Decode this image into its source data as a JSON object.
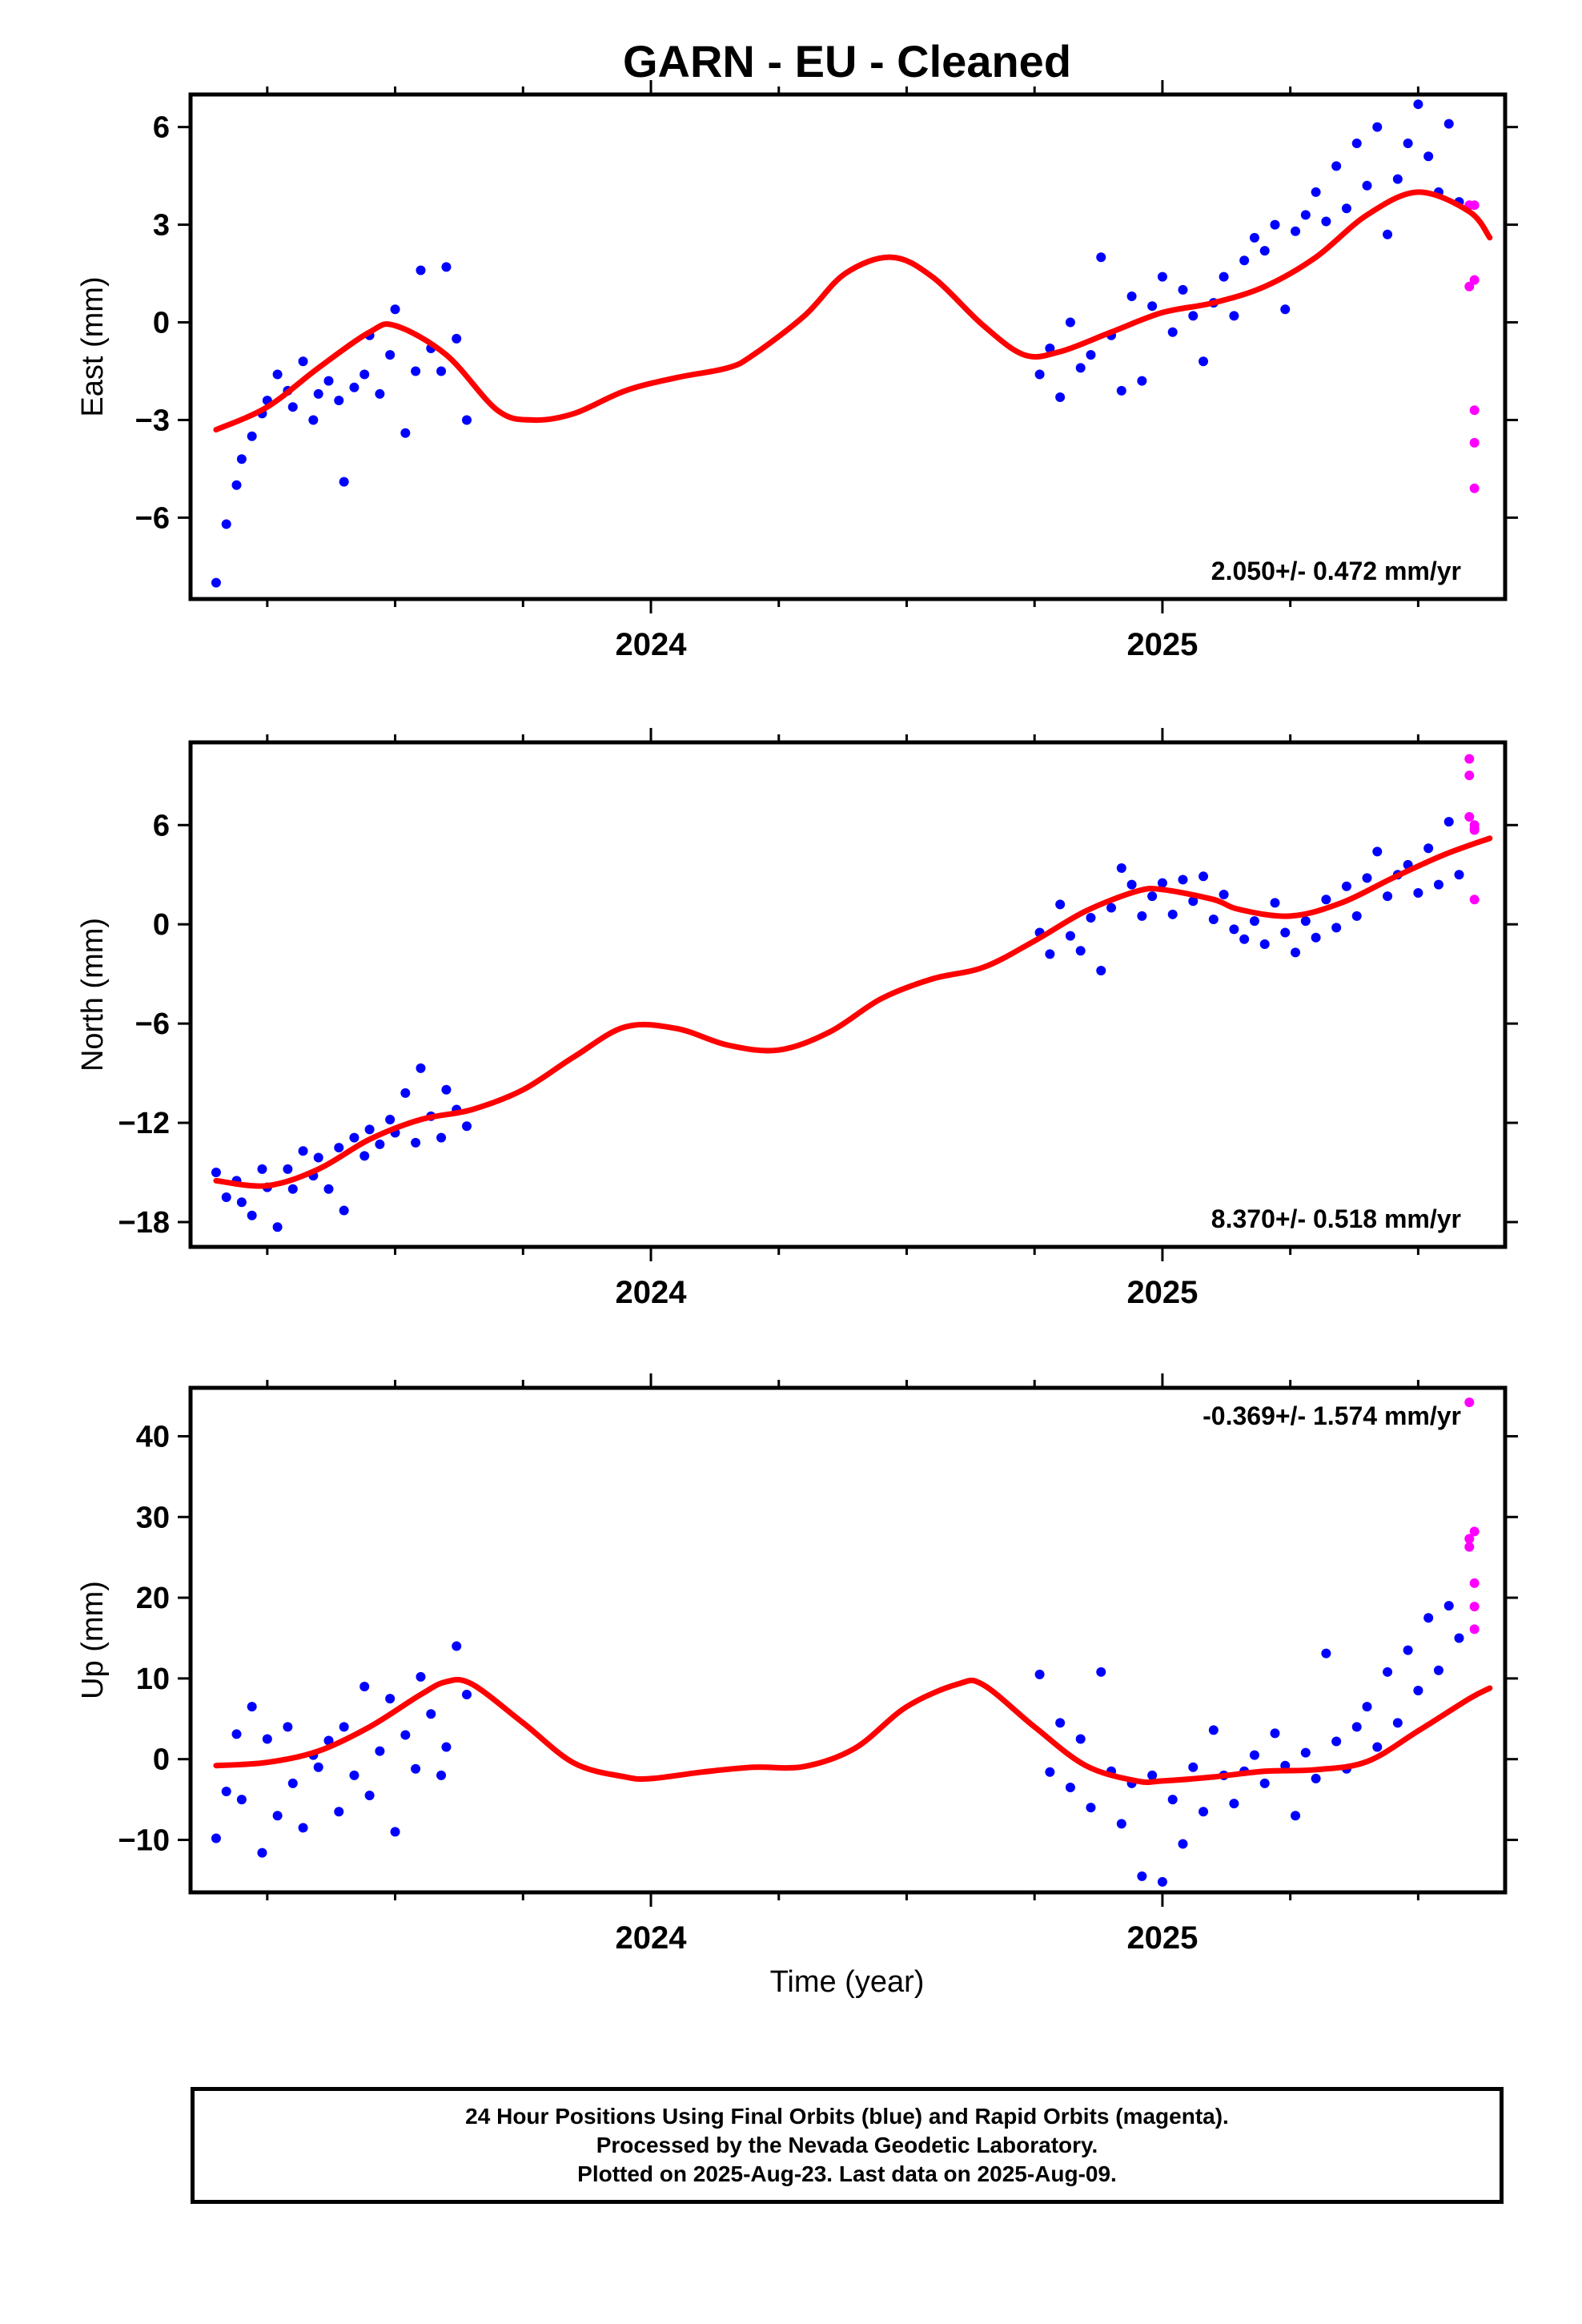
{
  "title": "GARN  - EU - Cleaned",
  "xlabel": "Time (year)",
  "colors": {
    "final_orbits": "#0000ff",
    "rapid_orbits": "#ff00ff",
    "model": "#ff0000",
    "axes": "#000000"
  },
  "footer": {
    "line1": "24 Hour Positions Using Final Orbits (blue) and Rapid Orbits (magenta).",
    "line2": "Processed by the Nevada Geodetic Laboratory.",
    "line3": "Plotted on 2025-Aug-23. Last data on 2025-Aug-09."
  },
  "chart_data": [
    {
      "type": "scatter",
      "component": "East",
      "ylabel": "East (mm)",
      "xlim": [
        2023.1,
        2025.67
      ],
      "ylim": [
        -8.5,
        7.0
      ],
      "yticks": [
        -6,
        -3,
        0,
        3,
        6
      ],
      "xticks": [
        2024,
        2025
      ],
      "rate_label": "2.050+/- 0.472 mm/yr",
      "model_curve": {
        "x": [
          2023.15,
          2023.25,
          2023.35,
          2023.45,
          2023.5,
          2023.6,
          2023.7,
          2023.77,
          2023.85,
          2023.95,
          2024.05,
          2024.15,
          2024.2,
          2024.3,
          2024.38,
          2024.47,
          2024.55,
          2024.65,
          2024.73,
          2024.8,
          2024.9,
          2025.0,
          2025.1,
          2025.2,
          2025.3,
          2025.4,
          2025.5,
          2025.6,
          2025.64
        ],
        "y": [
          -3.3,
          -2.6,
          -1.4,
          -0.3,
          -0.1,
          -1.0,
          -2.7,
          -3.0,
          -2.8,
          -2.1,
          -1.7,
          -1.4,
          -1.0,
          0.2,
          1.5,
          2.0,
          1.4,
          -0.1,
          -1.0,
          -0.9,
          -0.3,
          0.3,
          0.6,
          1.1,
          2.0,
          3.3,
          4.0,
          3.4,
          2.6
        ]
      },
      "final_orbits_points": {
        "x": [
          2023.15,
          2023.17,
          2023.19,
          2023.2,
          2023.22,
          2023.24,
          2023.25,
          2023.27,
          2023.29,
          2023.3,
          2023.32,
          2023.34,
          2023.35,
          2023.37,
          2023.39,
          2023.4,
          2023.42,
          2023.44,
          2023.45,
          2023.47,
          2023.49,
          2023.5,
          2023.52,
          2023.54,
          2023.55,
          2023.57,
          2023.59,
          2023.6,
          2023.62,
          2023.64,
          2024.76,
          2024.78,
          2024.8,
          2024.82,
          2024.84,
          2024.86,
          2024.88,
          2024.9,
          2024.92,
          2024.94,
          2024.96,
          2024.98,
          2025.0,
          2025.02,
          2025.04,
          2025.06,
          2025.08,
          2025.1,
          2025.12,
          2025.14,
          2025.16,
          2025.18,
          2025.2,
          2025.22,
          2025.24,
          2025.26,
          2025.28,
          2025.3,
          2025.32,
          2025.34,
          2025.36,
          2025.38,
          2025.4,
          2025.42,
          2025.44,
          2025.46,
          2025.48,
          2025.5,
          2025.52,
          2025.54,
          2025.56,
          2025.58
        ],
        "y": [
          -8.0,
          -6.2,
          -5.0,
          -4.2,
          -3.5,
          -2.8,
          -2.4,
          -1.6,
          -2.1,
          -2.6,
          -1.2,
          -3.0,
          -2.2,
          -1.8,
          -2.4,
          -4.9,
          -2.0,
          -1.6,
          -0.4,
          -2.2,
          -1.0,
          0.4,
          -3.4,
          -1.5,
          1.6,
          -0.8,
          -1.5,
          1.7,
          -0.5,
          -3.0,
          -1.6,
          -0.8,
          -2.3,
          0.0,
          -1.4,
          -1.0,
          2.0,
          -0.4,
          -2.1,
          0.8,
          -1.8,
          0.5,
          1.4,
          -0.3,
          1.0,
          0.2,
          -1.2,
          0.6,
          1.4,
          0.2,
          1.9,
          2.6,
          2.2,
          3.0,
          0.4,
          2.8,
          3.3,
          4.0,
          3.1,
          4.8,
          3.5,
          5.5,
          4.2,
          6.0,
          2.7,
          4.4,
          5.5,
          6.7,
          5.1,
          4.0,
          6.1,
          3.7
        ]
      },
      "rapid_orbits_points": {
        "x": [
          2025.6,
          2025.6,
          2025.6,
          2025.61,
          2025.61,
          2025.61,
          2025.61,
          2025.61
        ],
        "y": [
          3.6,
          3.6,
          1.1,
          1.3,
          -2.7,
          -3.7,
          -5.1,
          3.6
        ]
      }
    },
    {
      "type": "scatter",
      "component": "North",
      "ylabel": "North (mm)",
      "xlim": [
        2023.1,
        2025.67
      ],
      "ylim": [
        -19.5,
        11.0
      ],
      "yticks": [
        -18,
        -12,
        -6,
        0,
        6
      ],
      "xticks": [
        2024,
        2025
      ],
      "rate_label": "8.370+/- 0.518 mm/yr",
      "model_curve": {
        "x": [
          2023.15,
          2023.25,
          2023.35,
          2023.45,
          2023.55,
          2023.65,
          2023.75,
          2023.85,
          2023.95,
          2024.05,
          2024.15,
          2024.25,
          2024.35,
          2024.45,
          2024.55,
          2024.65,
          2024.75,
          2024.85,
          2024.95,
          2025.0,
          2025.1,
          2025.15,
          2025.25,
          2025.35,
          2025.45,
          2025.55,
          2025.64
        ],
        "y": [
          -15.5,
          -15.8,
          -14.8,
          -13.0,
          -11.8,
          -11.2,
          -10.0,
          -8.0,
          -6.2,
          -6.3,
          -7.3,
          -7.6,
          -6.5,
          -4.5,
          -3.3,
          -2.6,
          -1.0,
          0.8,
          2.0,
          2.1,
          1.5,
          0.9,
          0.5,
          1.3,
          2.8,
          4.2,
          5.2
        ]
      },
      "final_orbits_points": {
        "x": [
          2023.15,
          2023.17,
          2023.19,
          2023.2,
          2023.22,
          2023.24,
          2023.25,
          2023.27,
          2023.29,
          2023.3,
          2023.32,
          2023.34,
          2023.35,
          2023.37,
          2023.39,
          2023.4,
          2023.42,
          2023.44,
          2023.45,
          2023.47,
          2023.49,
          2023.5,
          2023.52,
          2023.54,
          2023.55,
          2023.57,
          2023.59,
          2023.6,
          2023.62,
          2023.64,
          2024.76,
          2024.78,
          2024.8,
          2024.82,
          2024.84,
          2024.86,
          2024.88,
          2024.9,
          2024.92,
          2024.94,
          2024.96,
          2024.98,
          2025.0,
          2025.02,
          2025.04,
          2025.06,
          2025.08,
          2025.1,
          2025.12,
          2025.14,
          2025.16,
          2025.18,
          2025.2,
          2025.22,
          2025.24,
          2025.26,
          2025.28,
          2025.3,
          2025.32,
          2025.34,
          2025.36,
          2025.38,
          2025.4,
          2025.42,
          2025.44,
          2025.46,
          2025.48,
          2025.5,
          2025.52,
          2025.54,
          2025.56,
          2025.58
        ],
        "y": [
          -15.0,
          -16.5,
          -15.5,
          -16.8,
          -17.6,
          -14.8,
          -15.9,
          -18.3,
          -14.8,
          -16.0,
          -13.7,
          -15.2,
          -14.1,
          -16.0,
          -13.5,
          -17.3,
          -12.9,
          -14.0,
          -12.4,
          -13.3,
          -11.8,
          -12.6,
          -10.2,
          -13.2,
          -8.7,
          -11.6,
          -12.9,
          -10.0,
          -11.2,
          -12.2,
          -0.5,
          -1.8,
          1.2,
          -0.7,
          -1.6,
          0.4,
          -2.8,
          1.0,
          3.4,
          2.4,
          0.5,
          1.7,
          2.5,
          0.6,
          2.7,
          1.4,
          2.9,
          0.3,
          1.8,
          -0.3,
          -0.9,
          0.2,
          -1.2,
          1.3,
          -0.5,
          -1.7,
          0.2,
          -0.8,
          1.5,
          -0.2,
          2.3,
          0.5,
          2.8,
          4.4,
          1.7,
          3.0,
          3.6,
          1.9,
          4.6,
          2.4,
          6.2,
          3.0
        ]
      },
      "rapid_orbits_points": {
        "x": [
          2025.6,
          2025.6,
          2025.6,
          2025.61,
          2025.61,
          2025.61,
          2025.61
        ],
        "y": [
          10.0,
          9.0,
          6.5,
          5.8,
          5.7,
          6.0,
          1.5
        ]
      }
    },
    {
      "type": "scatter",
      "component": "Up",
      "ylabel": "Up (mm)",
      "xlim": [
        2023.1,
        2025.67
      ],
      "ylim": [
        -16.5,
        46.0
      ],
      "yticks": [
        -10,
        0,
        10,
        20,
        30,
        40
      ],
      "xticks": [
        2024,
        2025
      ],
      "rate_label": "-0.369+/- 1.574 mm/yr",
      "model_curve": {
        "x": [
          2023.15,
          2023.25,
          2023.35,
          2023.45,
          2023.55,
          2023.6,
          2023.65,
          2023.75,
          2023.85,
          2023.95,
          2024.0,
          2024.1,
          2024.2,
          2024.3,
          2024.4,
          2024.5,
          2024.6,
          2024.65,
          2024.75,
          2024.85,
          2024.95,
          2025.0,
          2025.1,
          2025.2,
          2025.3,
          2025.4,
          2025.5,
          2025.6,
          2025.64
        ],
        "y": [
          -0.8,
          -0.4,
          1.0,
          4.0,
          8.0,
          9.6,
          9.3,
          4.5,
          -0.5,
          -2.2,
          -2.4,
          -1.6,
          -1.0,
          -0.9,
          1.4,
          6.5,
          9.3,
          9.2,
          4.0,
          -0.8,
          -2.7,
          -2.7,
          -2.2,
          -1.5,
          -1.3,
          -0.3,
          3.5,
          7.5,
          8.8
        ]
      },
      "final_orbits_points": {
        "x": [
          2023.15,
          2023.17,
          2023.19,
          2023.2,
          2023.22,
          2023.24,
          2023.25,
          2023.27,
          2023.29,
          2023.3,
          2023.32,
          2023.34,
          2023.35,
          2023.37,
          2023.39,
          2023.4,
          2023.42,
          2023.44,
          2023.45,
          2023.47,
          2023.49,
          2023.5,
          2023.52,
          2023.54,
          2023.55,
          2023.57,
          2023.59,
          2023.6,
          2023.62,
          2023.64,
          2024.76,
          2024.78,
          2024.8,
          2024.82,
          2024.84,
          2024.86,
          2024.88,
          2024.9,
          2024.92,
          2024.94,
          2024.96,
          2024.98,
          2025.0,
          2025.02,
          2025.04,
          2025.06,
          2025.08,
          2025.1,
          2025.12,
          2025.14,
          2025.16,
          2025.18,
          2025.2,
          2025.22,
          2025.24,
          2025.26,
          2025.28,
          2025.3,
          2025.32,
          2025.34,
          2025.36,
          2025.38,
          2025.4,
          2025.42,
          2025.44,
          2025.46,
          2025.48,
          2025.5,
          2025.52,
          2025.54,
          2025.56,
          2025.58
        ],
        "y": [
          -9.8,
          -4.0,
          3.1,
          -5.0,
          6.5,
          -11.6,
          2.5,
          -7.0,
          4.0,
          -3.0,
          -8.5,
          0.5,
          -1.0,
          2.3,
          -6.5,
          4.0,
          -2.0,
          9.0,
          -4.5,
          1.0,
          7.5,
          -9.0,
          3.0,
          -1.2,
          10.2,
          5.6,
          -2.0,
          1.5,
          14.0,
          8.0,
          10.5,
          -1.6,
          4.5,
          -3.5,
          2.5,
          -6.0,
          10.8,
          -1.5,
          -8.0,
          -3.0,
          -14.5,
          -2.0,
          -15.2,
          -5.0,
          -10.5,
          -1.0,
          -6.5,
          3.6,
          -2.0,
          -5.5,
          -1.5,
          0.5,
          -3.0,
          3.2,
          -0.8,
          -7.0,
          0.8,
          -2.4,
          13.1,
          2.2,
          -1.2,
          4.0,
          6.5,
          1.5,
          10.8,
          4.5,
          13.5,
          8.5,
          17.5,
          11.0,
          19.0,
          15.0
        ]
      },
      "rapid_orbits_points": {
        "x": [
          2025.6,
          2025.6,
          2025.6,
          2025.61,
          2025.61,
          2025.61,
          2025.61
        ],
        "y": [
          44.2,
          27.3,
          26.3,
          28.2,
          21.8,
          18.9,
          16.1
        ]
      }
    }
  ]
}
